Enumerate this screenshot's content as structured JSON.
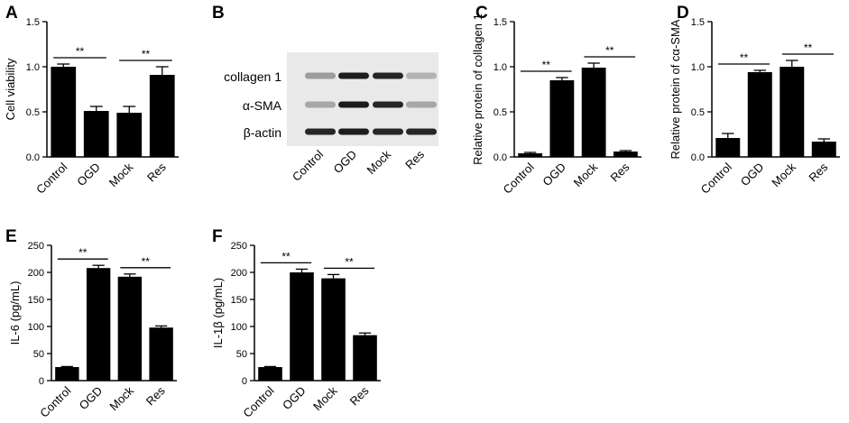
{
  "panels": {
    "A": "A",
    "B": "B",
    "C": "C",
    "D": "D",
    "E": "E",
    "F": "F"
  },
  "blot": {
    "bands": [
      "collagen 1",
      "α-SMA",
      "β-actin"
    ],
    "lanes": [
      "Control",
      "OGD",
      "Mock",
      "Res"
    ]
  },
  "chart_data": [
    {
      "panel": "A",
      "type": "bar",
      "categories": [
        "Control",
        "OGD",
        "Mock",
        "Res"
      ],
      "values": [
        1.0,
        0.51,
        0.49,
        0.91
      ],
      "errors": [
        0.03,
        0.05,
        0.07,
        0.09
      ],
      "ylabel": "Cell viability",
      "ylim": [
        0,
        1.5
      ],
      "yticks": [
        "0.0",
        "0.5",
        "1.0",
        "1.5"
      ],
      "significance": [
        {
          "pair": [
            0,
            1
          ],
          "label": "**"
        },
        {
          "pair": [
            2,
            3
          ],
          "label": "**"
        }
      ]
    },
    {
      "panel": "C",
      "type": "bar",
      "categories": [
        "Control",
        "OGD",
        "Mock",
        "Res"
      ],
      "values": [
        0.04,
        0.85,
        0.99,
        0.06
      ],
      "errors": [
        0.01,
        0.03,
        0.05,
        0.01
      ],
      "ylabel": "Relative protein of collagen 1",
      "ylim": [
        0,
        1.5
      ],
      "yticks": [
        "0.0",
        "0.5",
        "1.0",
        "1.5"
      ],
      "significance": [
        {
          "pair": [
            0,
            1
          ],
          "label": "**"
        },
        {
          "pair": [
            2,
            3
          ],
          "label": "**"
        }
      ]
    },
    {
      "panel": "D",
      "type": "bar",
      "categories": [
        "Control",
        "OGD",
        "Mock",
        "Res"
      ],
      "values": [
        0.21,
        0.94,
        1.0,
        0.17
      ],
      "errors": [
        0.05,
        0.02,
        0.07,
        0.03
      ],
      "ylabel": "Relative protein of cα-SMA",
      "ylim": [
        0,
        1.5
      ],
      "yticks": [
        "0.0",
        "0.5",
        "1.0",
        "1.5"
      ],
      "significance": [
        {
          "pair": [
            0,
            1
          ],
          "label": "**"
        },
        {
          "pair": [
            2,
            3
          ],
          "label": "**"
        }
      ]
    },
    {
      "panel": "E",
      "type": "bar",
      "categories": [
        "Control",
        "OGD",
        "Mock",
        "Res"
      ],
      "values": [
        25,
        208,
        192,
        98
      ],
      "errors": [
        1,
        5,
        5,
        3
      ],
      "ylabel": "IL-6 (pg/mL)",
      "ylim": [
        0,
        250
      ],
      "yticks": [
        "0",
        "50",
        "100",
        "150",
        "200",
        "250"
      ],
      "significance": [
        {
          "pair": [
            0,
            1
          ],
          "label": "**"
        },
        {
          "pair": [
            2,
            3
          ],
          "label": "**"
        }
      ]
    },
    {
      "panel": "F",
      "type": "bar",
      "categories": [
        "Control",
        "OGD",
        "Mock",
        "Res"
      ],
      "values": [
        25,
        200,
        189,
        84
      ],
      "errors": [
        1,
        6,
        7,
        4
      ],
      "ylabel": "IL-1β (pg/mL)",
      "ylim": [
        0,
        250
      ],
      "yticks": [
        "0",
        "50",
        "100",
        "150",
        "200",
        "250"
      ],
      "significance": [
        {
          "pair": [
            0,
            1
          ],
          "label": "**"
        },
        {
          "pair": [
            2,
            3
          ],
          "label": "**"
        }
      ]
    }
  ]
}
